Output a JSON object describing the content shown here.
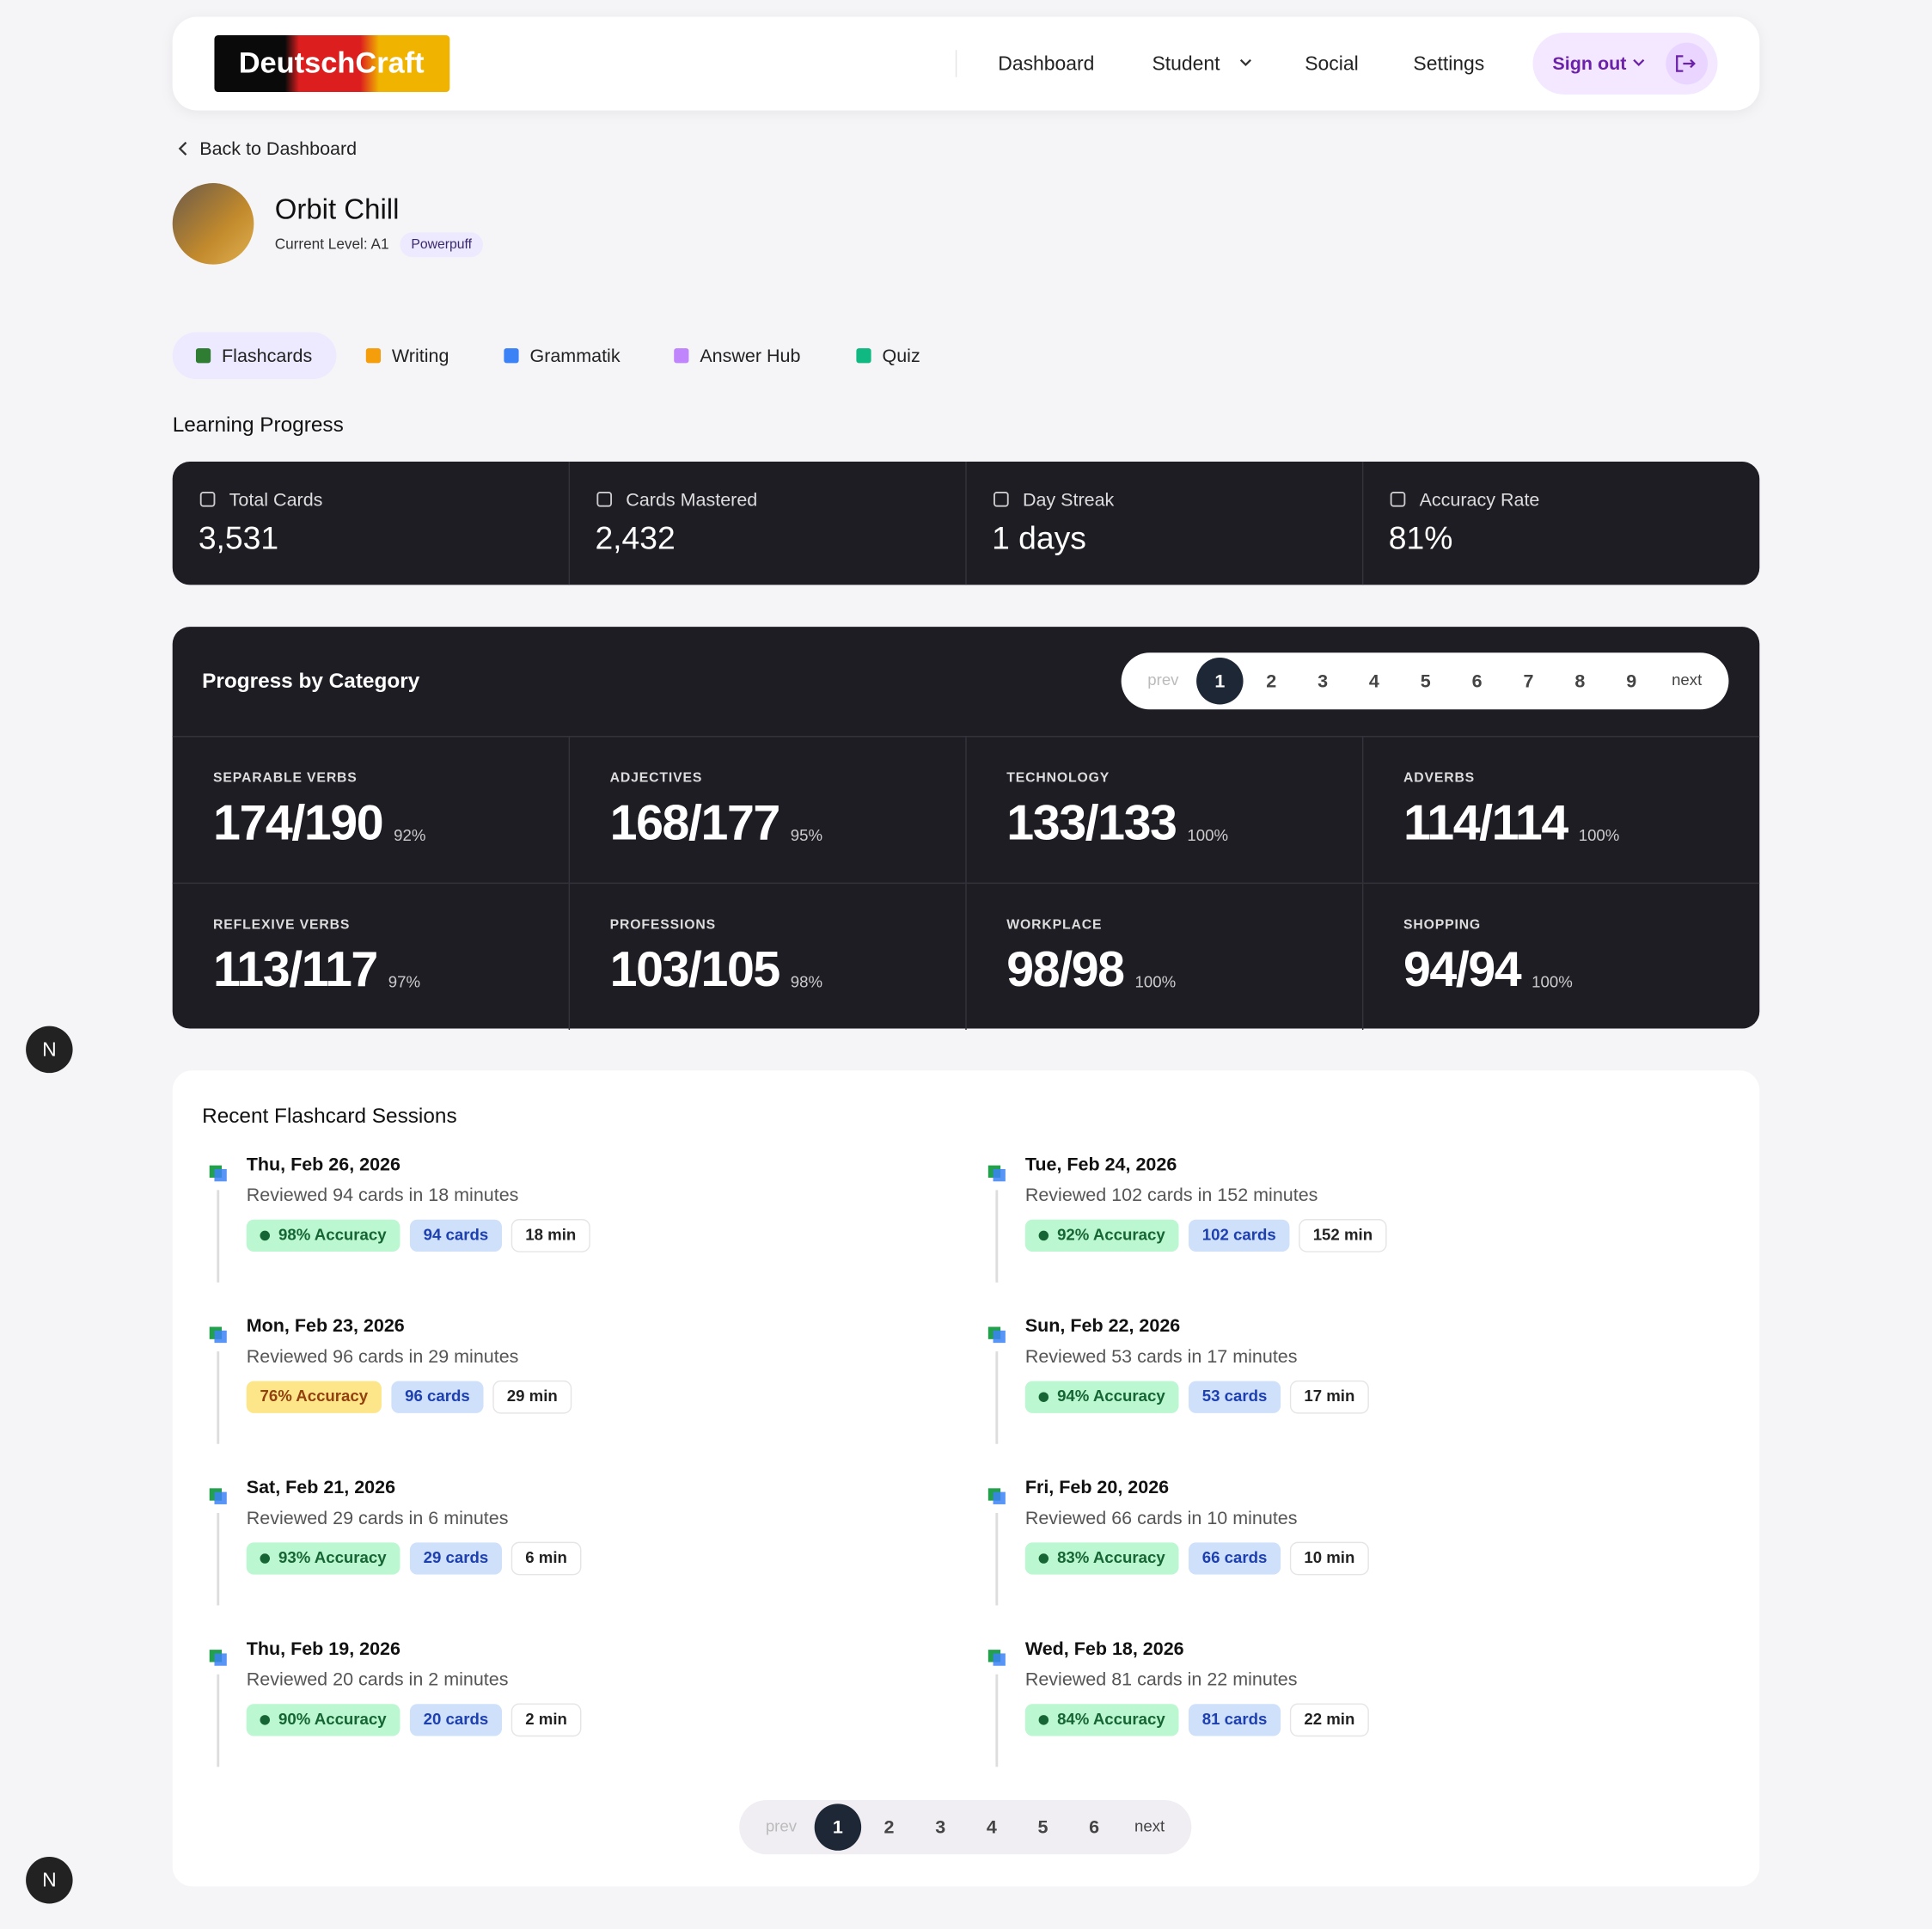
{
  "nav": {
    "logo": "DeutschCraft",
    "links": [
      "Dashboard",
      "Student",
      "Social",
      "Settings"
    ],
    "sign_out": "Sign out"
  },
  "back": "Back to Dashboard",
  "profile": {
    "name": "Orbit Chill",
    "level": "Current Level: A1",
    "badge": "Powerpuff"
  },
  "tabs": [
    "Flashcards",
    "Writing",
    "Grammatik",
    "Answer Hub",
    "Quiz"
  ],
  "section_title": "Learning Progress",
  "stats": [
    {
      "label": "Total Cards",
      "value": "3,531"
    },
    {
      "label": "Cards Mastered",
      "value": "2,432"
    },
    {
      "label": "Day Streak",
      "value": "1 days"
    },
    {
      "label": "Accuracy Rate",
      "value": "81%"
    }
  ],
  "category": {
    "title": "Progress by Category",
    "pagination": {
      "prev": "prev",
      "pages": [
        1,
        2,
        3,
        4,
        5,
        6,
        7,
        8,
        9
      ],
      "next": "next"
    },
    "items": [
      {
        "name": "SEPARABLE VERBS",
        "score": "174/190",
        "percent": "92%"
      },
      {
        "name": "ADJECTIVES",
        "score": "168/177",
        "percent": "95%"
      },
      {
        "name": "TECHNOLOGY",
        "score": "133/133",
        "percent": "100%"
      },
      {
        "name": "ADVERBS",
        "score": "114/114",
        "percent": "100%"
      },
      {
        "name": "REFLEXIVE VERBS",
        "score": "113/117",
        "percent": "97%"
      },
      {
        "name": "PROFESSIONS",
        "score": "103/105",
        "percent": "98%"
      },
      {
        "name": "WORKPLACE",
        "score": "98/98",
        "percent": "100%"
      },
      {
        "name": "SHOPPING",
        "score": "94/94",
        "percent": "100%"
      }
    ]
  },
  "sessions": {
    "title": "Recent Flashcard Sessions",
    "items": [
      {
        "date": "Thu, Feb 26, 2026",
        "summary": "Reviewed 94 cards in 18 minutes",
        "accuracy": "98% Accuracy",
        "cards": "94 cards",
        "time": "18 min",
        "accuracy_color": "green"
      },
      {
        "date": "Tue, Feb 24, 2026",
        "summary": "Reviewed 102 cards in 152 minutes",
        "accuracy": "92% Accuracy",
        "cards": "102 cards",
        "time": "152 min",
        "accuracy_color": "green"
      },
      {
        "date": "Mon, Feb 23, 2026",
        "summary": "Reviewed 96 cards in 29 minutes",
        "accuracy": "76% Accuracy",
        "cards": "96 cards",
        "time": "29 min",
        "accuracy_color": "yellow"
      },
      {
        "date": "Sun, Feb 22, 2026",
        "summary": "Reviewed 53 cards in 17 minutes",
        "accuracy": "94% Accuracy",
        "cards": "53 cards",
        "time": "17 min",
        "accuracy_color": "green"
      },
      {
        "date": "Sat, Feb 21, 2026",
        "summary": "Reviewed 29 cards in 6 minutes",
        "accuracy": "93% Accuracy",
        "cards": "29 cards",
        "time": "6 min",
        "accuracy_color": "green"
      },
      {
        "date": "Fri, Feb 20, 2026",
        "summary": "Reviewed 66 cards in 10 minutes",
        "accuracy": "83% Accuracy",
        "cards": "66 cards",
        "time": "10 min",
        "accuracy_color": "green"
      },
      {
        "date": "Thu, Feb 19, 2026",
        "summary": "Reviewed 20 cards in 2 minutes",
        "accuracy": "90% Accuracy",
        "cards": "20 cards",
        "time": "2 min",
        "accuracy_color": "green"
      },
      {
        "date": "Wed, Feb 18, 2026",
        "summary": "Reviewed 81 cards in 22 minutes",
        "accuracy": "84% Accuracy",
        "cards": "81 cards",
        "time": "22 min",
        "accuracy_color": "green"
      }
    ],
    "pagination": {
      "prev": "prev",
      "pages": [
        1,
        2,
        3,
        4,
        5,
        6
      ],
      "next": "next"
    }
  }
}
